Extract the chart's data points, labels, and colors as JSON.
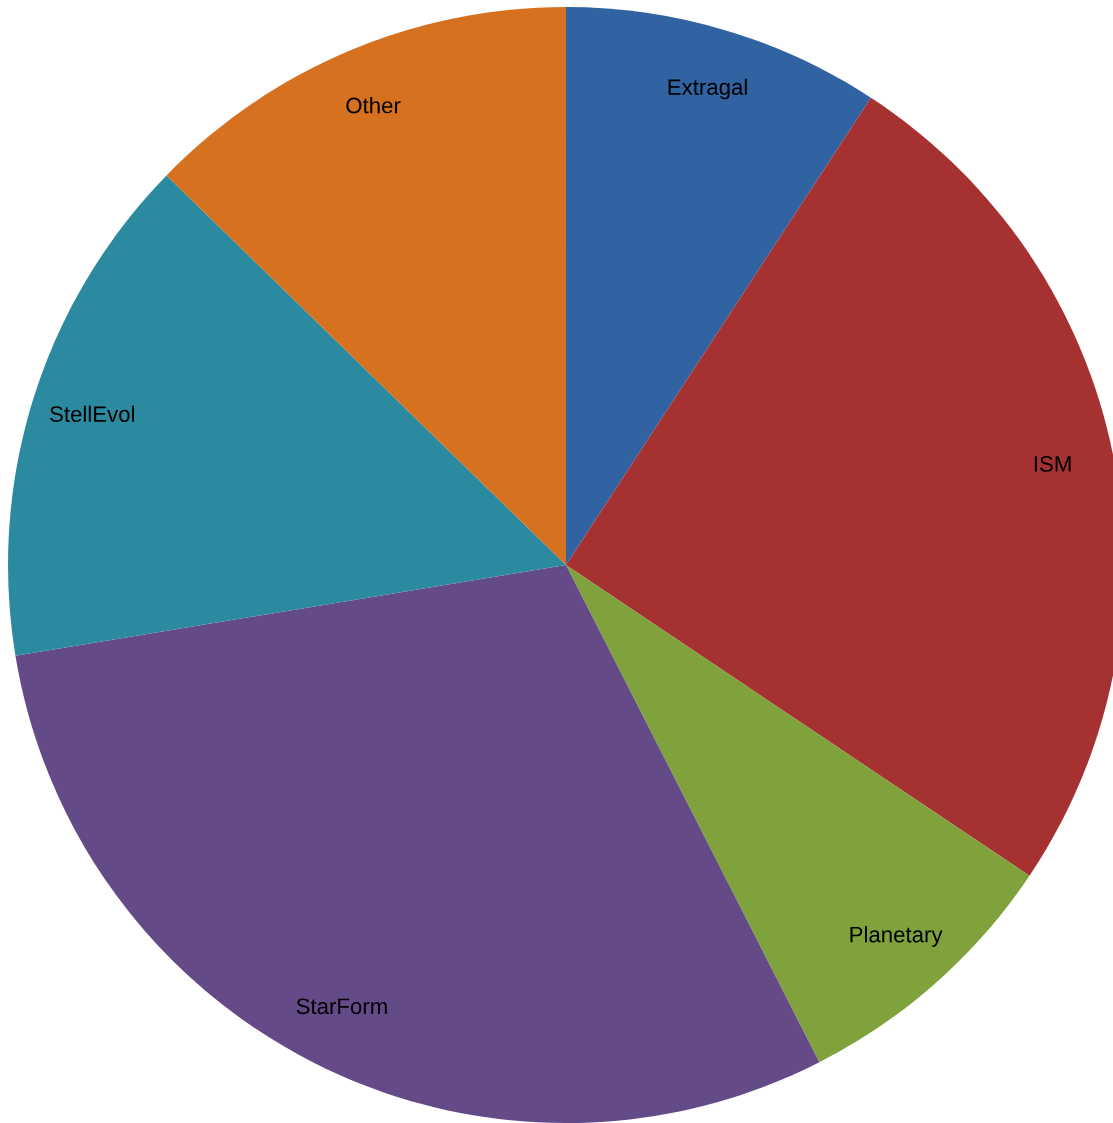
{
  "chart_data": {
    "type": "pie",
    "categories": [
      "Extragal",
      "ISM",
      "Planetary",
      "StarForm",
      "StellEvol",
      "Other"
    ],
    "values": [
      9.2,
      25.2,
      8.1,
      29.9,
      14.9,
      12.7
    ],
    "colors": [
      "#3163a3",
      "#a53131",
      "#80a23c",
      "#654a88",
      "#2b8aa0",
      "#d6711f"
    ],
    "legend": false
  }
}
